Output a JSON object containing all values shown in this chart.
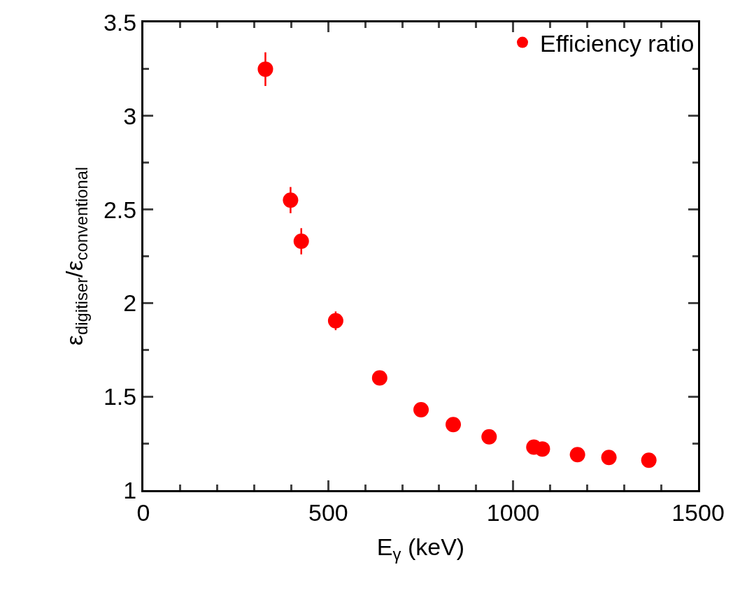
{
  "chart_data": {
    "type": "scatter",
    "xlabel": "E$_{γ}$ (keV)",
    "ylabel": "ε$_{digitiser}$/ε$_{conventional}$",
    "x": [
      330,
      398,
      427,
      520,
      639,
      751,
      838,
      935,
      1056,
      1079,
      1174,
      1259,
      1367
    ],
    "series": [
      {
        "name": "Efficiency ratio",
        "color": "#ff0000",
        "values": [
          3.25,
          2.55,
          2.33,
          1.905,
          1.6,
          1.43,
          1.35,
          1.285,
          1.23,
          1.22,
          1.19,
          1.175,
          1.16
        ],
        "errors": [
          0.09,
          0.07,
          0.07,
          0.05,
          0.03,
          null,
          null,
          null,
          null,
          null,
          null,
          null,
          null
        ]
      }
    ],
    "xlim": [
      0,
      1500
    ],
    "xticks": [
      0,
      500,
      1000,
      1500
    ],
    "ylim": [
      1,
      3.5
    ],
    "yticks": [
      1,
      1.5,
      2,
      2.5,
      3,
      3.5
    ],
    "marker": "circle",
    "legend": "top right",
    "grid": false
  }
}
